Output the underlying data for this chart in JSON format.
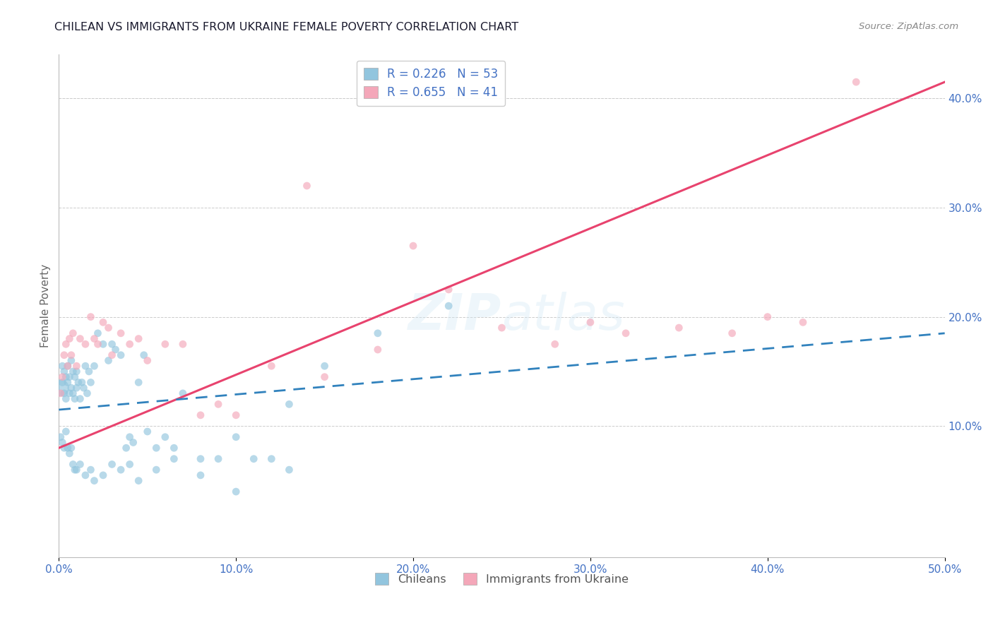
{
  "title": "CHILEAN VS IMMIGRANTS FROM UKRAINE FEMALE POVERTY CORRELATION CHART",
  "source_text": "Source: ZipAtlas.com",
  "ylabel": "Female Poverty",
  "xlim": [
    0.0,
    0.5
  ],
  "ylim": [
    -0.02,
    0.44
  ],
  "xticks": [
    0.0,
    0.1,
    0.2,
    0.3,
    0.4,
    0.5
  ],
  "yticks_right": [
    0.1,
    0.2,
    0.3,
    0.4
  ],
  "ytick_labels_right": [
    "10.0%",
    "20.0%",
    "30.0%",
    "40.0%"
  ],
  "xtick_labels": [
    "0.0%",
    "10.0%",
    "20.0%",
    "30.0%",
    "40.0%",
    "50.0%"
  ],
  "legend_labels": [
    "Chileans",
    "Immigrants from Ukraine"
  ],
  "R_chileans": 0.226,
  "N_chileans": 53,
  "R_ukraine": 0.655,
  "N_ukraine": 41,
  "color_chileans": "#92c5de",
  "color_ukraine": "#f4a7b9",
  "trendline_chileans_color": "#3182bd",
  "trendline_ukraine_color": "#e8436e",
  "background_color": "#ffffff",
  "grid_color": "#cccccc",
  "title_color": "#1a1a2e",
  "axis_label_color": "#4472c4",
  "legend_text_color": "#4472c4",
  "chileans_x": [
    0.001,
    0.002,
    0.002,
    0.003,
    0.003,
    0.004,
    0.004,
    0.005,
    0.005,
    0.006,
    0.006,
    0.007,
    0.007,
    0.008,
    0.008,
    0.009,
    0.009,
    0.01,
    0.01,
    0.011,
    0.012,
    0.013,
    0.014,
    0.015,
    0.016,
    0.017,
    0.018,
    0.02,
    0.022,
    0.025,
    0.028,
    0.03,
    0.032,
    0.035,
    0.038,
    0.04,
    0.042,
    0.045,
    0.048,
    0.05,
    0.055,
    0.06,
    0.065,
    0.07,
    0.08,
    0.09,
    0.1,
    0.11,
    0.12,
    0.13,
    0.15,
    0.18,
    0.22
  ],
  "chileans_y": [
    0.135,
    0.155,
    0.14,
    0.13,
    0.15,
    0.145,
    0.125,
    0.14,
    0.155,
    0.13,
    0.145,
    0.16,
    0.135,
    0.15,
    0.13,
    0.145,
    0.125,
    0.135,
    0.15,
    0.14,
    0.125,
    0.14,
    0.135,
    0.155,
    0.13,
    0.15,
    0.14,
    0.155,
    0.185,
    0.175,
    0.16,
    0.175,
    0.17,
    0.165,
    0.08,
    0.09,
    0.085,
    0.14,
    0.165,
    0.095,
    0.08,
    0.09,
    0.08,
    0.13,
    0.07,
    0.07,
    0.09,
    0.07,
    0.07,
    0.12,
    0.155,
    0.185,
    0.21
  ],
  "chileans_y_neg": [
    0.09,
    0.085,
    0.08,
    0.095,
    0.08,
    0.075,
    0.08,
    0.065,
    0.06,
    0.06,
    0.065,
    0.055,
    0.06,
    0.05,
    0.055,
    0.065,
    0.06,
    0.065,
    0.05,
    0.06,
    0.07,
    0.055,
    0.04,
    0.06
  ],
  "chileans_x_neg": [
    0.001,
    0.002,
    0.003,
    0.004,
    0.005,
    0.006,
    0.007,
    0.008,
    0.009,
    0.01,
    0.012,
    0.015,
    0.018,
    0.02,
    0.025,
    0.03,
    0.035,
    0.04,
    0.045,
    0.055,
    0.065,
    0.08,
    0.1,
    0.13
  ],
  "ukraine_x": [
    0.001,
    0.002,
    0.003,
    0.004,
    0.005,
    0.006,
    0.007,
    0.008,
    0.01,
    0.012,
    0.015,
    0.018,
    0.02,
    0.022,
    0.025,
    0.028,
    0.03,
    0.035,
    0.04,
    0.045,
    0.05,
    0.06,
    0.07,
    0.08,
    0.09,
    0.1,
    0.12,
    0.15,
    0.18,
    0.2,
    0.22,
    0.25,
    0.28,
    0.3,
    0.32,
    0.35,
    0.38,
    0.4,
    0.42,
    0.45,
    0.14
  ],
  "ukraine_y": [
    0.13,
    0.145,
    0.165,
    0.175,
    0.155,
    0.18,
    0.165,
    0.185,
    0.155,
    0.18,
    0.175,
    0.2,
    0.18,
    0.175,
    0.195,
    0.19,
    0.165,
    0.185,
    0.175,
    0.18,
    0.16,
    0.175,
    0.175,
    0.11,
    0.12,
    0.11,
    0.155,
    0.145,
    0.17,
    0.265,
    0.225,
    0.19,
    0.175,
    0.195,
    0.185,
    0.19,
    0.185,
    0.2,
    0.195,
    0.415,
    0.32
  ],
  "trendline_ukraine_x_start": 0.0,
  "trendline_ukraine_y_start": 0.08,
  "trendline_ukraine_x_end": 0.5,
  "trendline_ukraine_y_end": 0.415,
  "trendline_chileans_x_start": 0.0,
  "trendline_chileans_y_start": 0.115,
  "trendline_chileans_x_end": 0.5,
  "trendline_chileans_y_end": 0.185
}
